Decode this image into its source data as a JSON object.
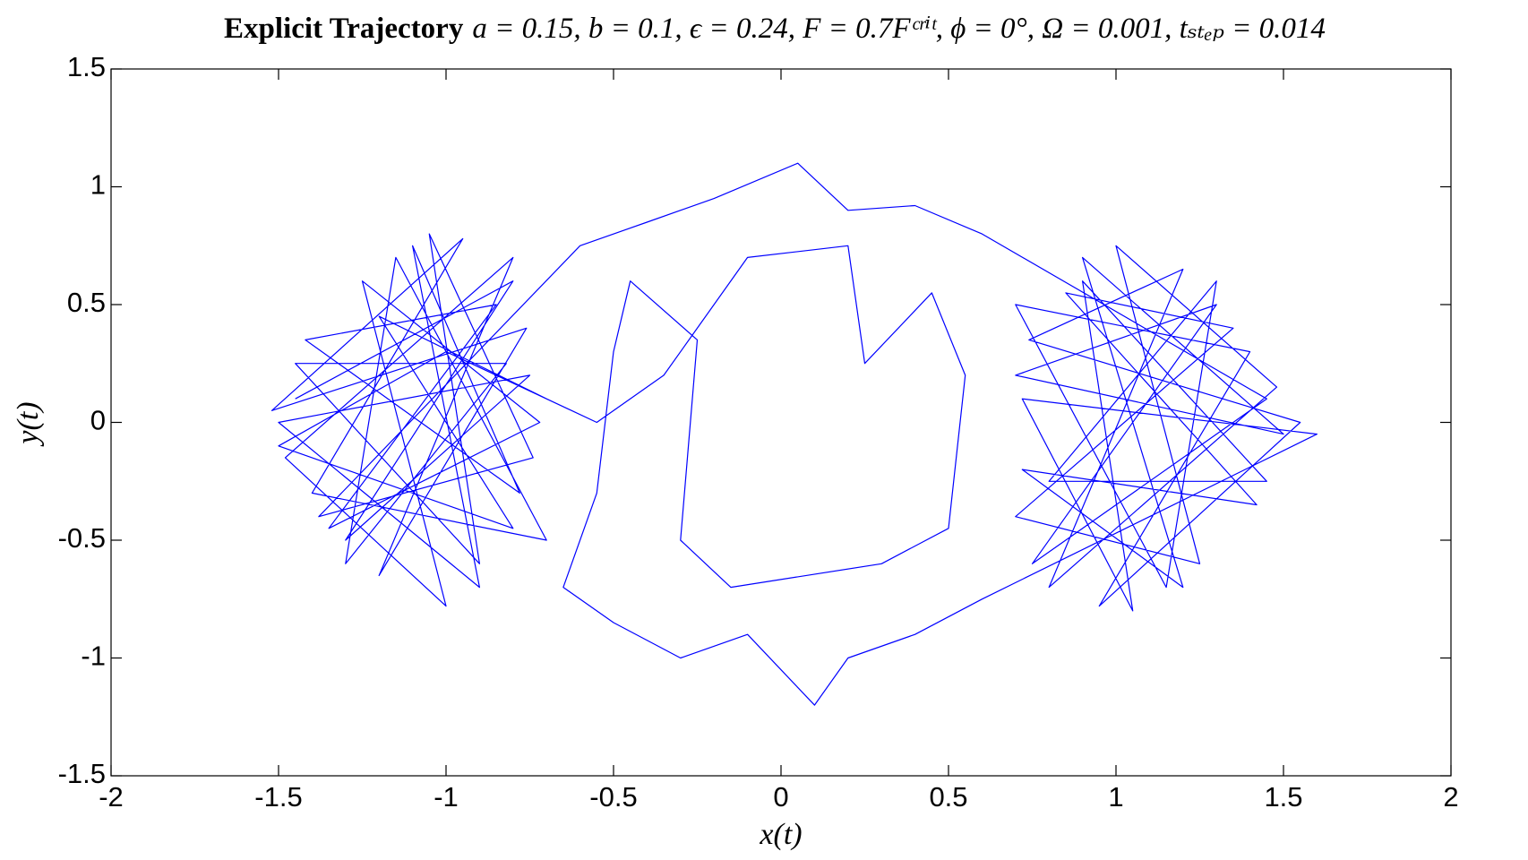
{
  "chart_data": {
    "type": "line",
    "title": "Explicit Trajectory",
    "subtitle": "a = 0.15, b = 0.1, ϵ = 0.24, F = 0.7Fᶜʳⁱᵗ, ϕ = 0°, Ω = 0.001, tₛₜₑₚ = 0.014",
    "x_label": "x(t)",
    "y_label": "y(t)",
    "color": "#0000ff",
    "x": [
      -1.45,
      -0.8,
      -1.3,
      -0.75,
      -1.5,
      -0.9,
      -1.1,
      -0.78,
      -1.42,
      -0.85,
      -1.35,
      -0.72,
      -1.25,
      -1.0,
      -1.48,
      -0.8,
      -1.2,
      -0.76,
      -1.52,
      -0.95,
      -1.4,
      -0.7,
      -1.15,
      -1.3,
      -0.82,
      -1.45,
      -0.9,
      -1.05,
      -0.74,
      -1.38,
      -0.6,
      -0.4,
      -0.2,
      0.05,
      0.2,
      0.4,
      0.6,
      1.45,
      0.75,
      1.3,
      0.7,
      1.5,
      0.9,
      1.2,
      0.72,
      1.42,
      0.85,
      1.35,
      0.7,
      1.25,
      1.0,
      1.48,
      0.8,
      1.2,
      0.74,
      1.55,
      0.95,
      1.4,
      0.7,
      1.15,
      1.3,
      0.8,
      1.45,
      0.9,
      1.05,
      0.72,
      1.6,
      0.6,
      0.4,
      0.2,
      0.1,
      -0.1,
      -0.3,
      -0.5,
      -0.65,
      -0.55,
      -0.5,
      -0.45,
      -0.25,
      -0.3,
      -0.15,
      0.3,
      0.5,
      0.55,
      0.45,
      0.25,
      0.2,
      -0.1,
      -0.35,
      -0.55,
      -1.0,
      -1.5,
      -0.8,
      -1.2,
      -0.7
    ],
    "values": [
      0.1,
      0.6,
      -0.5,
      0.2,
      0.0,
      -0.7,
      0.75,
      -0.3,
      0.35,
      0.5,
      -0.45,
      0.0,
      0.6,
      -0.78,
      -0.15,
      0.7,
      -0.65,
      0.4,
      0.05,
      0.78,
      -0.3,
      -0.5,
      0.7,
      -0.6,
      0.25,
      0.25,
      -0.6,
      0.8,
      -0.15,
      -0.4,
      0.75,
      0.85,
      0.95,
      1.1,
      0.9,
      0.92,
      0.8,
      0.1,
      -0.6,
      0.5,
      0.2,
      -0.05,
      0.7,
      -0.7,
      -0.2,
      -0.35,
      0.55,
      0.4,
      -0.4,
      -0.6,
      0.75,
      0.15,
      -0.7,
      0.65,
      0.35,
      0.0,
      -0.78,
      0.3,
      0.5,
      -0.7,
      0.6,
      -0.25,
      -0.25,
      0.6,
      -0.8,
      0.1,
      -0.05,
      -0.75,
      -0.9,
      -1.0,
      -1.2,
      -0.9,
      -1.0,
      -0.85,
      -0.7,
      -0.3,
      0.3,
      0.6,
      0.35,
      -0.5,
      -0.7,
      -0.6,
      -0.45,
      0.2,
      0.55,
      0.25,
      0.75,
      0.7,
      0.2,
      0.0,
      0.3,
      -0.1,
      -0.45,
      0.45,
      0.1
    ],
    "xlim": [
      -2,
      2
    ],
    "xticks": [
      -2,
      -1.5,
      -1,
      -0.5,
      0,
      0.5,
      1,
      1.5,
      2
    ],
    "ylim": [
      -1.5,
      1.5
    ],
    "yticks": [
      -1.5,
      -1,
      -0.5,
      0,
      0.5,
      1,
      1.5
    ]
  }
}
